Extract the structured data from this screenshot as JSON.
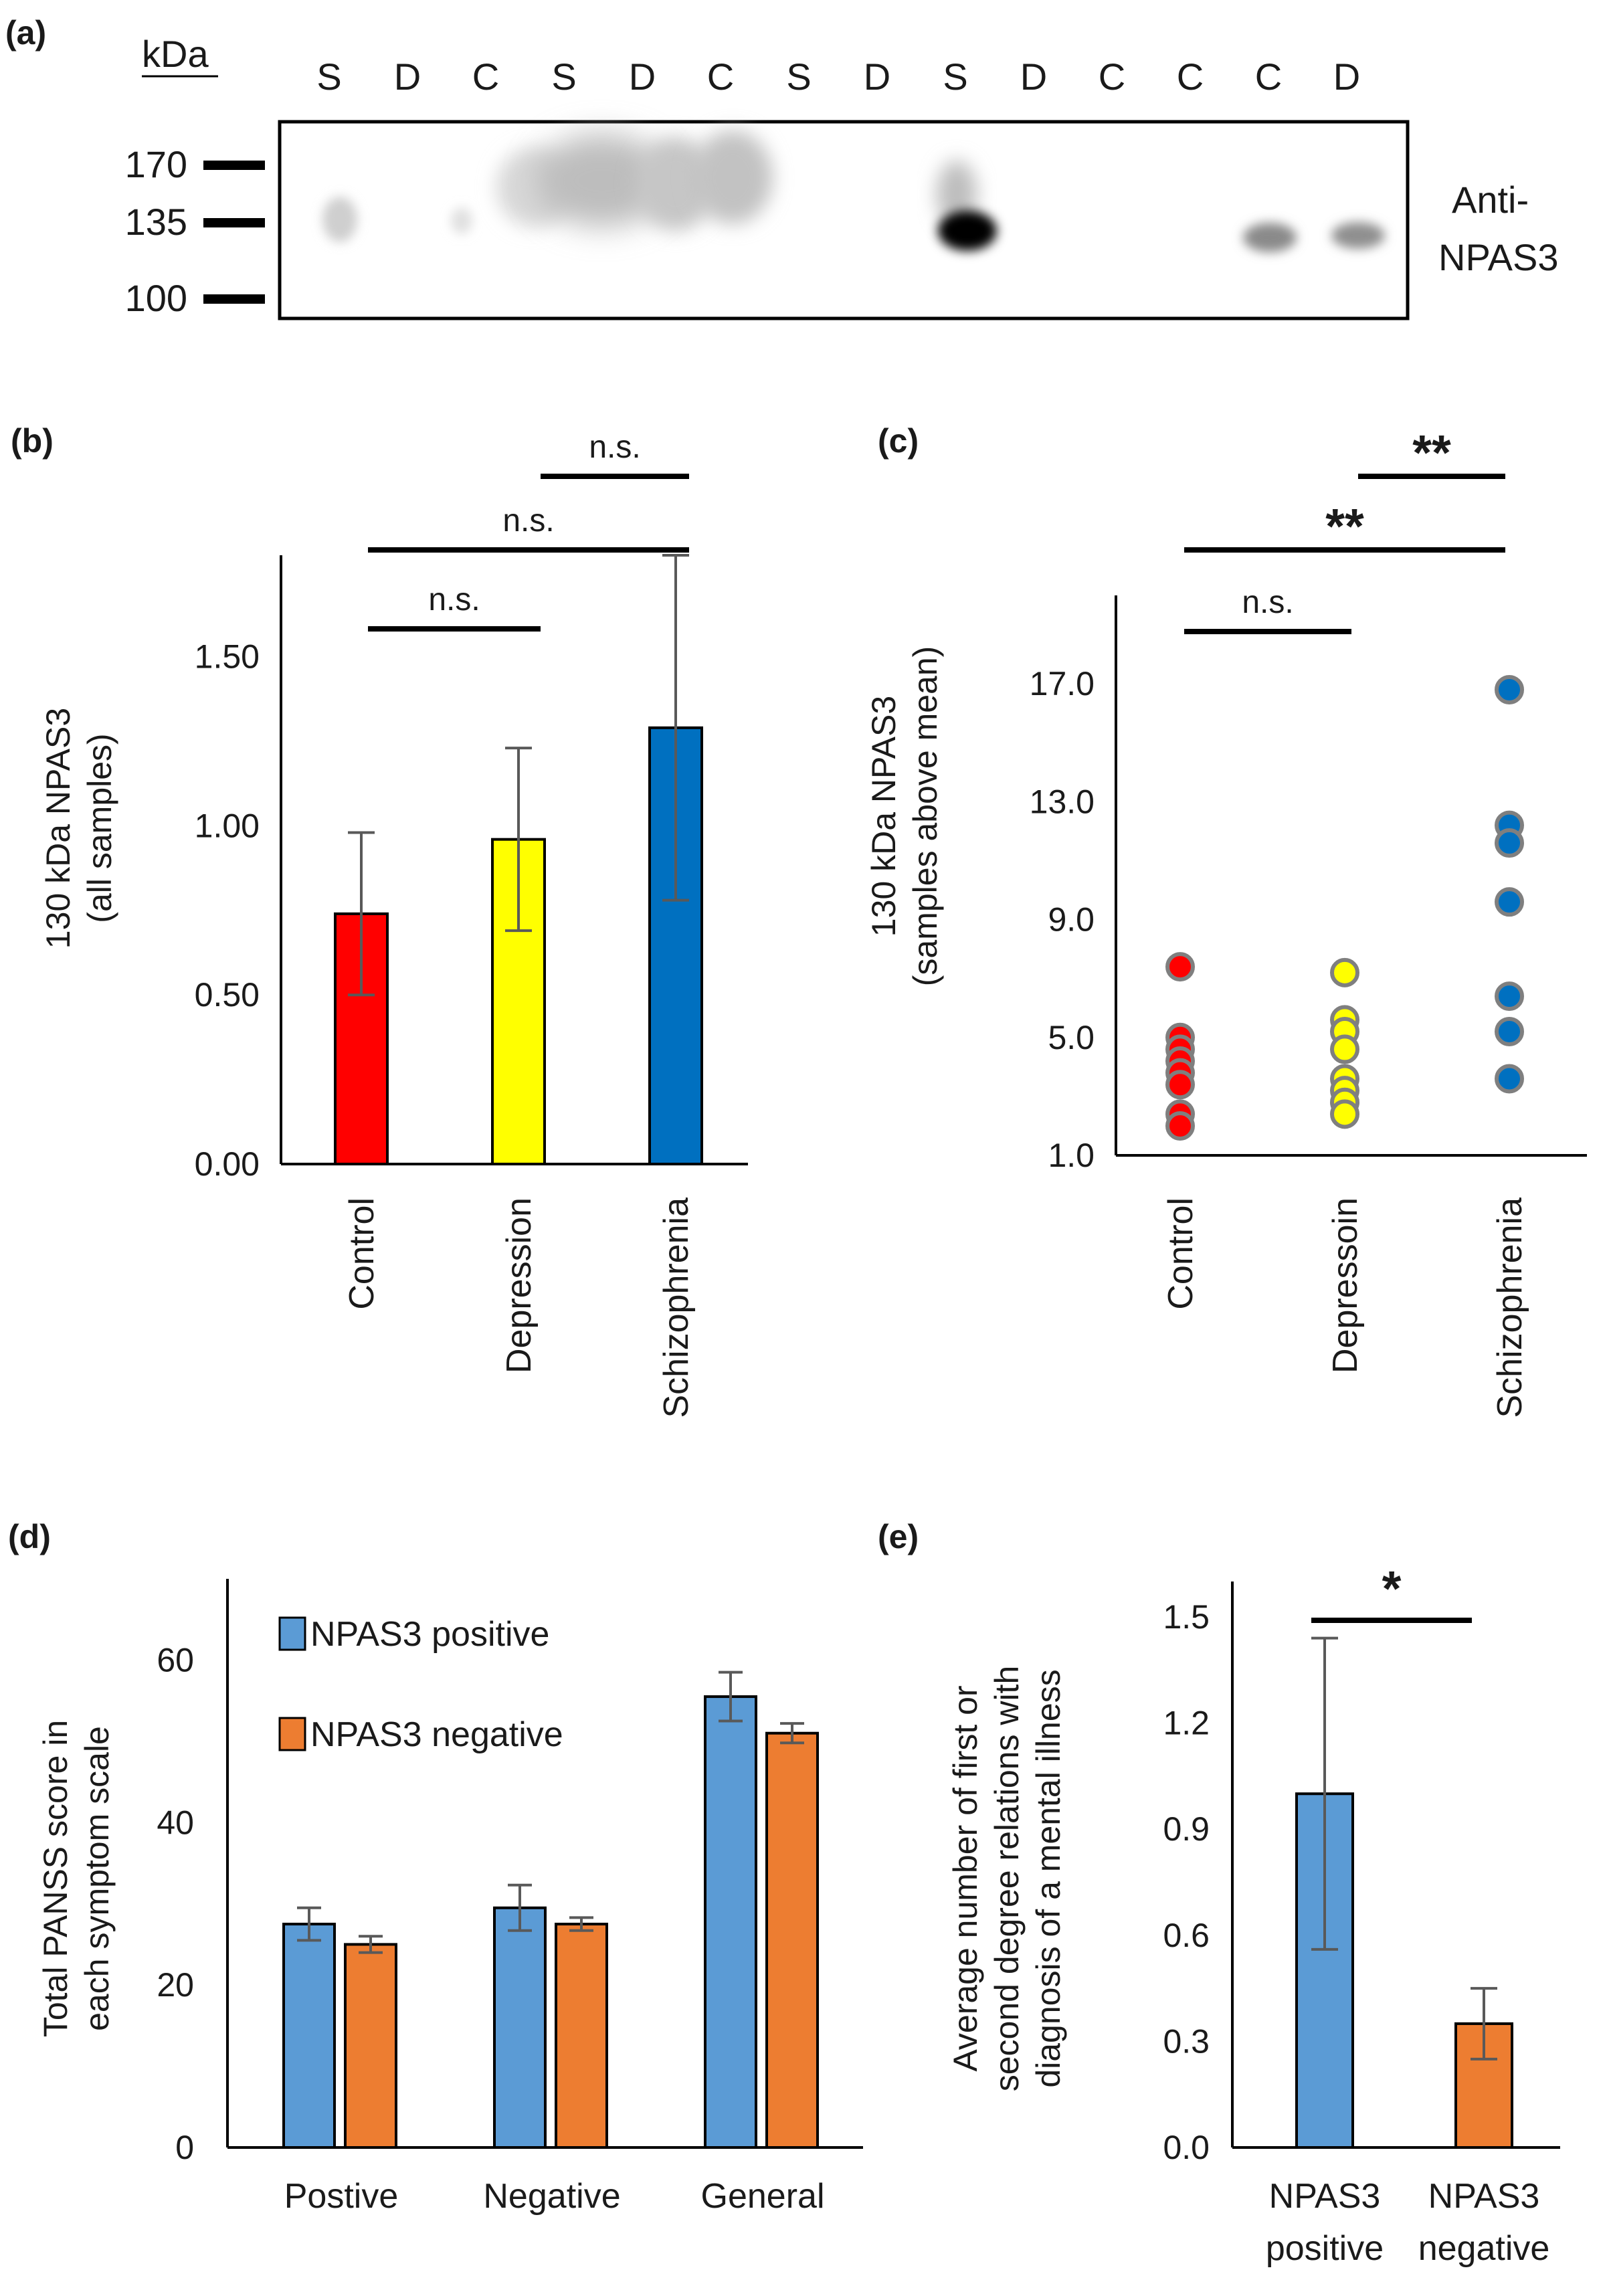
{
  "blot": {
    "panel_label": "(a)",
    "kda_label": "kDa",
    "lanes": [
      "S",
      "D",
      "C",
      "S",
      "D",
      "C",
      "S",
      "D",
      "S",
      "D",
      "C",
      "C",
      "C",
      "D"
    ],
    "markers": [
      "170",
      "135",
      "100"
    ],
    "antibody_line1": "Anti-",
    "antibody_line2": "NPAS3"
  },
  "chart_data": [
    {
      "panel": "(b)",
      "type": "bar",
      "categories": [
        "Control",
        "Depression",
        "Schizophrenia"
      ],
      "values": [
        0.74,
        0.96,
        1.29
      ],
      "error": [
        0.24,
        0.27,
        0.51
      ],
      "colors": [
        "#ff0000",
        "#ffff00",
        "#0070c0"
      ],
      "ylabel_line1": "130 kDa NPAS3",
      "ylabel_line2": "(all samples)",
      "ylim": [
        0,
        1.8
      ],
      "yticks": [
        "0.00",
        "0.50",
        "1.00",
        "1.50"
      ],
      "significance": [
        {
          "pair": [
            "Control",
            "Depression"
          ],
          "label": "n.s."
        },
        {
          "pair": [
            "Control",
            "Schizophrenia"
          ],
          "label": "n.s."
        },
        {
          "pair": [
            "Depression",
            "Schizophrenia"
          ],
          "label": "n.s."
        }
      ]
    },
    {
      "panel": "(c)",
      "type": "scatter",
      "categories": [
        "Control",
        "Depressoin",
        "Schizophrenia"
      ],
      "points": [
        [
          7.4,
          5.0,
          4.6,
          4.2,
          3.8,
          3.4,
          2.4,
          2.0
        ],
        [
          7.2,
          5.6,
          5.2,
          4.6,
          3.6,
          3.2,
          2.8,
          2.4
        ],
        [
          16.8,
          12.2,
          11.6,
          9.6,
          6.4,
          5.2,
          3.6
        ]
      ],
      "colors": [
        "#ff0000",
        "#ffff00",
        "#0070c0"
      ],
      "ylabel_line1": "130 kDa NPAS3",
      "ylabel_line2": "(samples above  mean)",
      "ylim": [
        1.0,
        20.0
      ],
      "yticks": [
        "1.0",
        "5.0",
        "9.0",
        "13.0",
        "17.0"
      ],
      "significance": [
        {
          "pair": [
            "Control",
            "Depressoin"
          ],
          "label": "n.s."
        },
        {
          "pair": [
            "Control",
            "Schizophrenia"
          ],
          "label": "**"
        },
        {
          "pair": [
            "Depressoin",
            "Schizophrenia"
          ],
          "label": "**"
        }
      ]
    },
    {
      "panel": "(d)",
      "type": "bar",
      "categories": [
        "Postive",
        "Negative",
        "General"
      ],
      "series": [
        {
          "name": "NPAS3 positive",
          "values": [
            27.5,
            29.5,
            55.5
          ],
          "error": [
            2.0,
            2.8,
            3.0
          ],
          "color": "#5b9bd5"
        },
        {
          "name": "NPAS3 negative",
          "values": [
            25.0,
            27.5,
            51.0
          ],
          "error": [
            1.0,
            0.8,
            1.2
          ],
          "color": "#ed7d31"
        }
      ],
      "ylabel_line1": "Total  PANSS score in",
      "ylabel_line2": "each symptom  scale",
      "ylim": [
        0,
        70
      ],
      "yticks": [
        "0",
        "20",
        "40",
        "60"
      ],
      "legend": "top-left"
    },
    {
      "panel": "(e)",
      "type": "bar",
      "categories": [
        "NPAS3 positive",
        "NPAS3 negative"
      ],
      "category_lines": [
        [
          "NPAS3",
          "positive"
        ],
        [
          "NPAS3",
          "negative"
        ]
      ],
      "values": [
        1.0,
        0.35
      ],
      "error": [
        0.44,
        0.1
      ],
      "colors": [
        "#5b9bd5",
        "#ed7d31"
      ],
      "ylabel_line1": "Average number  of first or",
      "ylabel_line2": "second degree relations with",
      "ylabel_line3": "diagnosis of a mental  illness",
      "ylim": [
        0,
        1.6
      ],
      "yticks": [
        "0.0",
        "0.3",
        "0.6",
        "0.9",
        "1.2",
        "1.5"
      ],
      "significance": [
        {
          "pair": [
            "NPAS3 positive",
            "NPAS3 negative"
          ],
          "label": "*"
        }
      ]
    }
  ]
}
